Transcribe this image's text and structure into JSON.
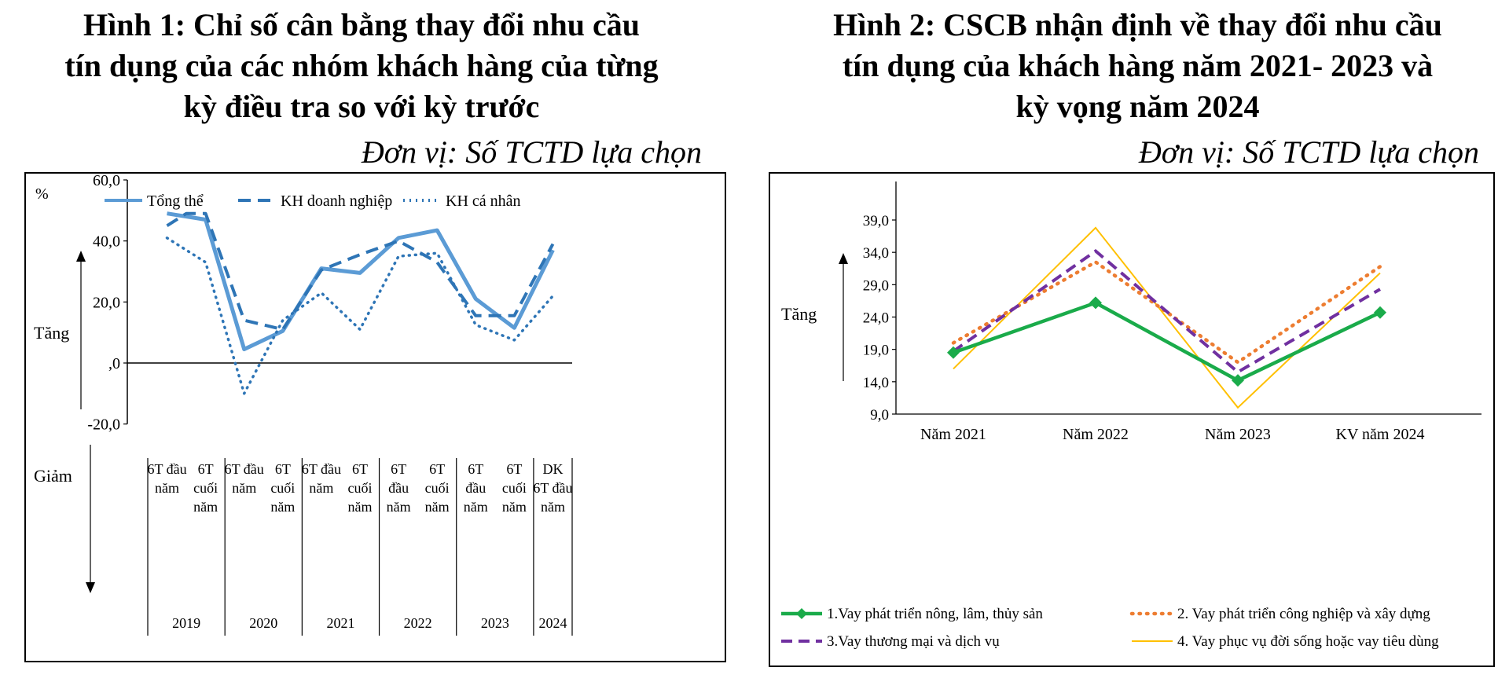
{
  "figure1": {
    "title_lines": [
      "Hình 1:  Chỉ số cân bằng thay đổi nhu cầu",
      "tín dụng của các nhóm khách hàng của từng",
      "kỳ điều tra so với kỳ trước"
    ],
    "unit": "Đơn vị: Số TCTD lựa chọn"
  },
  "figure2": {
    "title_lines": [
      "Hình 2: CSCB nhận định về thay đổi nhu cầu",
      "tín dụng của khách hàng năm 2021- 2023 và",
      "kỳ vọng năm 2024"
    ],
    "unit": "Đơn vị: Số TCTD lựa chọn"
  },
  "chart_data": [
    {
      "type": "line",
      "ylabel": "%",
      "ylim": [
        -20,
        60
      ],
      "yticks": [
        "60,0",
        "40,0",
        "20,0",
        ",0",
        "-20,0"
      ],
      "up_label": "Tăng",
      "down_label": "Giảm",
      "legend_position": "top",
      "categories": [
        {
          "label_lines": [
            "6T đầu",
            "năm"
          ],
          "year": "2019"
        },
        {
          "label_lines": [
            "6T",
            "cuối",
            "năm"
          ],
          "year": "2019"
        },
        {
          "label_lines": [
            "6T đầu",
            "năm"
          ],
          "year": "2020"
        },
        {
          "label_lines": [
            "6T",
            "cuối",
            "năm"
          ],
          "year": "2020"
        },
        {
          "label_lines": [
            "6T đầu",
            "năm"
          ],
          "year": "2021"
        },
        {
          "label_lines": [
            "6T",
            "cuối",
            "năm"
          ],
          "year": "2021"
        },
        {
          "label_lines": [
            "6T",
            "đầu",
            "năm"
          ],
          "year": "2022"
        },
        {
          "label_lines": [
            "6T",
            "cuối",
            "năm"
          ],
          "year": "2022"
        },
        {
          "label_lines": [
            "6T",
            "đầu",
            "năm"
          ],
          "year": "2023"
        },
        {
          "label_lines": [
            "6T",
            "cuối",
            "năm"
          ],
          "year": "2023"
        },
        {
          "label_lines": [
            "DK",
            "6T đầu",
            "năm"
          ],
          "year": "2024"
        }
      ],
      "years": [
        "2019",
        "2020",
        "2021",
        "2022",
        "2023",
        "2024"
      ],
      "x": [
        0,
        0.5,
        1,
        1.5,
        2,
        2.5,
        3,
        3.5,
        4,
        4.5,
        5,
        5.5,
        6,
        6.5,
        7,
        7.5,
        8,
        8.5,
        9,
        9.5,
        10
      ],
      "series": [
        {
          "name": "Tổng thể",
          "color": "#5b9bd5",
          "style": "solid",
          "values": [
            49,
            null,
            47,
            null,
            4.5,
            null,
            10.5,
            null,
            31,
            null,
            29.5,
            null,
            41,
            null,
            43.5,
            null,
            21,
            null,
            11.5,
            null,
            37
          ]
        },
        {
          "name": "KH doanh nghiệp",
          "color": "#2e75b6",
          "style": "dashed",
          "values": [
            45,
            49,
            49,
            null,
            14,
            null,
            11,
            null,
            30.5,
            33,
            35.5,
            null,
            40,
            null,
            33,
            null,
            15.5,
            null,
            15.5,
            null,
            39
          ]
        },
        {
          "name": "KH cá nhân",
          "color": "#2e75b6",
          "style": "dotted",
          "values": [
            41,
            null,
            33,
            null,
            -10,
            null,
            14,
            null,
            23,
            null,
            11,
            null,
            35,
            null,
            36,
            null,
            12.5,
            null,
            7.5,
            null,
            22
          ]
        }
      ]
    },
    {
      "type": "line",
      "ylim": [
        9,
        42
      ],
      "yticks": [
        "39,0",
        "34,0",
        "29,0",
        "24,0",
        "19,0",
        "14,0",
        "9,0"
      ],
      "up_label": "Tăng",
      "legend_position": "bottom",
      "categories": [
        "Năm 2021",
        "Năm 2022",
        "Năm 2023",
        "KV năm 2024"
      ],
      "series": [
        {
          "name": "1.Vay phát triển nông, lâm, thủy sản",
          "color": "#1aab4a",
          "style": "solid-diamond",
          "values": [
            18.5,
            26.2,
            14.2,
            24.7
          ]
        },
        {
          "name": "2. Vay phát triển công nghiệp và xây dựng",
          "color": "#ed7d31",
          "style": "dotted",
          "values": [
            20,
            32.5,
            17,
            31.8
          ]
        },
        {
          "name": "3.Vay thương mại và dịch vụ",
          "color": "#7030a0",
          "style": "dashed",
          "values": [
            18.7,
            34.2,
            15.5,
            28.3
          ]
        },
        {
          "name": "4. Vay phục vụ đời sống hoặc vay tiêu dùng",
          "color": "#ffc000",
          "style": "thin",
          "values": [
            16,
            37.8,
            10,
            30.8
          ]
        }
      ]
    }
  ]
}
